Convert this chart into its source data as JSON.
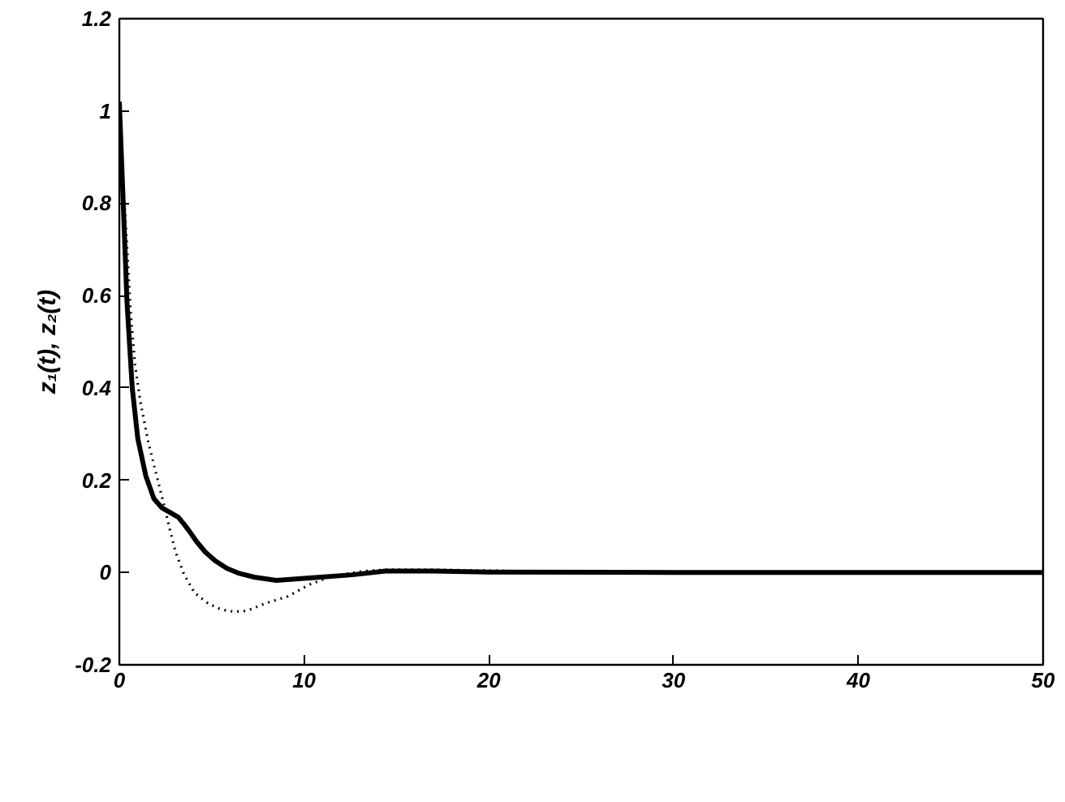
{
  "chart_data": {
    "type": "line",
    "ylabel": "z₁(t), z₂(t)",
    "xlim": [
      0,
      50
    ],
    "ylim": [
      -0.2,
      1.2
    ],
    "xticks": [
      0,
      10,
      20,
      30,
      40,
      50
    ],
    "yticks": [
      -0.2,
      0,
      0.2,
      0.4,
      0.6,
      0.8,
      1,
      1.2
    ],
    "grid": false,
    "marker": "none",
    "series": [
      {
        "color": "#000000",
        "line_style": "solid",
        "x": [
          0,
          0.26,
          0.41,
          0.56,
          0.7,
          1.0,
          1.43,
          1.87,
          2.31,
          2.75,
          3.19,
          3.5,
          3.78,
          4.2,
          4.66,
          5.2,
          5.83,
          6.5,
          7.3,
          8.5,
          10.3,
          12.6,
          14.4,
          17,
          20,
          30,
          40,
          50
        ],
        "values": [
          1.02,
          0.75,
          0.59,
          0.49,
          0.4,
          0.29,
          0.21,
          0.16,
          0.14,
          0.13,
          0.12,
          0.105,
          0.09,
          0.066,
          0.044,
          0.025,
          0.009,
          -0.002,
          -0.01,
          -0.017,
          -0.012,
          -0.005,
          0.003,
          0.003,
          0.001,
          0,
          0,
          0
        ]
      },
      {
        "color": "#000000",
        "line_style": "dotted",
        "x": [
          0,
          0.2,
          0.41,
          0.62,
          0.85,
          1.14,
          1.58,
          2.02,
          2.46,
          2.75,
          3.05,
          3.49,
          4.07,
          4.8,
          5.5,
          6.2,
          6.9,
          7.9,
          9.1,
          10.3,
          11.45,
          13.2,
          14.4,
          17,
          20,
          25,
          30,
          40,
          50
        ],
        "values": [
          1.0,
          0.85,
          0.71,
          0.56,
          0.45,
          0.37,
          0.28,
          0.21,
          0.14,
          0.09,
          0.044,
          -0.003,
          -0.044,
          -0.067,
          -0.08,
          -0.085,
          -0.083,
          -0.067,
          -0.052,
          -0.026,
          -0.009,
          0.003,
          0.006,
          0.006,
          0.004,
          0.001,
          0,
          0,
          0
        ]
      }
    ]
  }
}
